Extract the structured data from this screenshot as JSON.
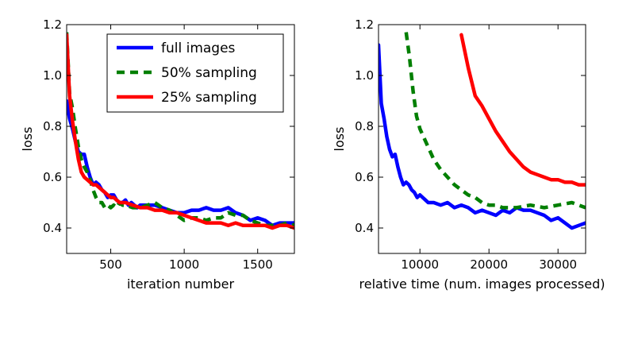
{
  "chart_data": [
    {
      "type": "line",
      "title": "",
      "xlabel": "iteration number",
      "ylabel": "loss",
      "xlim": [
        200,
        1750
      ],
      "ylim": [
        0.3,
        1.2
      ],
      "xticks": [
        500,
        1000,
        1500
      ],
      "yticks": [
        0.4,
        0.6,
        0.8,
        1.0,
        1.2
      ],
      "legend": "top-right",
      "series": [
        {
          "name": "full images",
          "color": "#0000ff",
          "style": "solid",
          "x": [
            200,
            220,
            240,
            260,
            280,
            300,
            320,
            340,
            360,
            380,
            400,
            420,
            440,
            460,
            480,
            500,
            520,
            540,
            560,
            580,
            600,
            620,
            640,
            660,
            680,
            700,
            750,
            800,
            850,
            900,
            950,
            1000,
            1050,
            1100,
            1150,
            1200,
            1250,
            1300,
            1350,
            1400,
            1450,
            1500,
            1550,
            1600,
            1650,
            1700,
            1750
          ],
          "values": [
            0.9,
            0.83,
            0.79,
            0.74,
            0.7,
            0.69,
            0.69,
            0.64,
            0.6,
            0.57,
            0.58,
            0.57,
            0.55,
            0.54,
            0.52,
            0.53,
            0.53,
            0.51,
            0.5,
            0.5,
            0.51,
            0.49,
            0.5,
            0.49,
            0.48,
            0.49,
            0.49,
            0.49,
            0.48,
            0.47,
            0.46,
            0.46,
            0.47,
            0.47,
            0.48,
            0.47,
            0.47,
            0.48,
            0.46,
            0.45,
            0.43,
            0.44,
            0.43,
            0.41,
            0.42,
            0.42,
            0.42
          ]
        },
        {
          "name": "50% sampling",
          "color": "#007f00",
          "style": "dashed",
          "x": [
            200,
            220,
            240,
            260,
            280,
            300,
            320,
            340,
            360,
            380,
            400,
            420,
            440,
            460,
            480,
            500,
            520,
            540,
            560,
            580,
            600,
            650,
            700,
            750,
            800,
            850,
            900,
            950,
            1000,
            1050,
            1100,
            1150,
            1200,
            1250,
            1300,
            1350,
            1400,
            1450,
            1500,
            1550,
            1600,
            1650,
            1700,
            1750
          ],
          "values": [
            1.17,
            0.93,
            0.87,
            0.79,
            0.72,
            0.67,
            0.64,
            0.62,
            0.59,
            0.55,
            0.52,
            0.5,
            0.5,
            0.48,
            0.49,
            0.48,
            0.49,
            0.48,
            0.5,
            0.49,
            0.49,
            0.48,
            0.48,
            0.49,
            0.5,
            0.48,
            0.47,
            0.45,
            0.43,
            0.44,
            0.44,
            0.43,
            0.44,
            0.44,
            0.46,
            0.45,
            0.45,
            0.43,
            0.42,
            0.41,
            0.41,
            0.41,
            0.42,
            0.41
          ]
        },
        {
          "name": "25% sampling",
          "color": "#ff0000",
          "style": "solid",
          "x": [
            200,
            220,
            240,
            260,
            280,
            300,
            320,
            340,
            360,
            380,
            400,
            420,
            440,
            460,
            480,
            500,
            520,
            540,
            560,
            580,
            600,
            650,
            700,
            750,
            800,
            850,
            900,
            950,
            1000,
            1050,
            1100,
            1150,
            1200,
            1250,
            1300,
            1350,
            1400,
            1450,
            1500,
            1550,
            1600,
            1650,
            1700,
            1750
          ],
          "values": [
            1.16,
            0.92,
            0.82,
            0.74,
            0.67,
            0.62,
            0.6,
            0.59,
            0.58,
            0.57,
            0.57,
            0.56,
            0.55,
            0.54,
            0.53,
            0.52,
            0.52,
            0.51,
            0.5,
            0.5,
            0.5,
            0.49,
            0.48,
            0.48,
            0.47,
            0.47,
            0.46,
            0.46,
            0.45,
            0.44,
            0.43,
            0.42,
            0.42,
            0.42,
            0.41,
            0.42,
            0.41,
            0.41,
            0.41,
            0.41,
            0.4,
            0.41,
            0.41,
            0.4
          ]
        }
      ]
    },
    {
      "type": "line",
      "title": "",
      "xlabel": "relative time (num. images processed)",
      "ylabel": "loss",
      "xlim": [
        4000,
        34000
      ],
      "ylim": [
        0.3,
        1.2
      ],
      "xticks": [
        10000,
        20000,
        30000
      ],
      "yticks": [
        0.4,
        0.6,
        0.8,
        1.0,
        1.2
      ],
      "series": [
        {
          "name": "full images",
          "color": "#0000ff",
          "style": "solid",
          "x": [
            4000,
            4400,
            4800,
            5200,
            5600,
            6000,
            6400,
            6800,
            7200,
            7600,
            8000,
            8400,
            8800,
            9200,
            9600,
            10000,
            10400,
            10800,
            11200,
            11600,
            12000,
            13000,
            14000,
            15000,
            16000,
            17000,
            18000,
            19000,
            20000,
            21000,
            22000,
            23000,
            24000,
            25000,
            26000,
            27000,
            28000,
            29000,
            30000,
            31000,
            32000,
            33000,
            34000
          ],
          "values": [
            1.12,
            0.89,
            0.83,
            0.76,
            0.71,
            0.68,
            0.69,
            0.64,
            0.6,
            0.57,
            0.58,
            0.57,
            0.55,
            0.54,
            0.52,
            0.53,
            0.52,
            0.51,
            0.5,
            0.5,
            0.5,
            0.49,
            0.5,
            0.48,
            0.49,
            0.48,
            0.46,
            0.47,
            0.46,
            0.45,
            0.47,
            0.46,
            0.48,
            0.47,
            0.47,
            0.46,
            0.45,
            0.43,
            0.44,
            0.42,
            0.4,
            0.41,
            0.42
          ]
        },
        {
          "name": "50% sampling",
          "color": "#007f00",
          "style": "dashed",
          "x": [
            8000,
            8500,
            9000,
            9500,
            10000,
            11000,
            12000,
            13000,
            14000,
            15000,
            16000,
            17000,
            18000,
            19000,
            20000,
            21000,
            22000,
            24000,
            26000,
            28000,
            30000,
            32000,
            34000
          ],
          "values": [
            1.17,
            1.07,
            0.94,
            0.84,
            0.79,
            0.73,
            0.67,
            0.63,
            0.6,
            0.57,
            0.55,
            0.53,
            0.52,
            0.5,
            0.49,
            0.49,
            0.48,
            0.48,
            0.49,
            0.48,
            0.49,
            0.5,
            0.48
          ]
        },
        {
          "name": "25% sampling",
          "color": "#ff0000",
          "style": "solid",
          "x": [
            16000,
            17000,
            18000,
            19000,
            20000,
            21000,
            22000,
            23000,
            24000,
            25000,
            26000,
            27000,
            28000,
            29000,
            30000,
            31000,
            32000,
            33000,
            34000
          ],
          "values": [
            1.16,
            1.03,
            0.92,
            0.88,
            0.83,
            0.78,
            0.74,
            0.7,
            0.67,
            0.64,
            0.62,
            0.61,
            0.6,
            0.59,
            0.59,
            0.58,
            0.58,
            0.57,
            0.57
          ]
        }
      ]
    }
  ]
}
